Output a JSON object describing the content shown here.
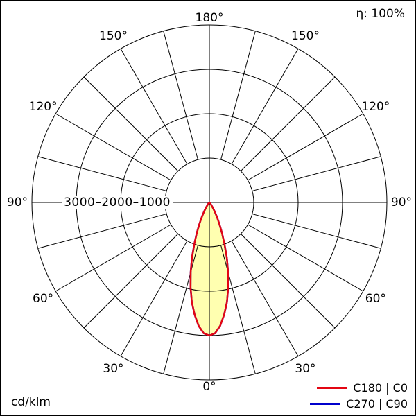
{
  "header": {
    "efficiency_label": "η: 100%"
  },
  "footer": {
    "unit_label": "cd/klm"
  },
  "radial_axis": {
    "scale_label": "3000–2000–1000"
  },
  "legend": {
    "items": [
      {
        "label": "C180 | C0",
        "color": "#e30613"
      },
      {
        "label": "C270 | C90",
        "color": "#0000cc"
      }
    ]
  },
  "angle_labels": [
    {
      "text": "180°",
      "gamma": 180,
      "dir": 0
    },
    {
      "text": "150°",
      "gamma": 150,
      "dir": -1
    },
    {
      "text": "150°",
      "gamma": 150,
      "dir": 1
    },
    {
      "text": "120°",
      "gamma": 120,
      "dir": -1
    },
    {
      "text": "120°",
      "gamma": 120,
      "dir": 1
    },
    {
      "text": "90°",
      "gamma": 90,
      "dir": -1
    },
    {
      "text": "90°",
      "gamma": 90,
      "dir": 1
    },
    {
      "text": "60°",
      "gamma": 60,
      "dir": -1
    },
    {
      "text": "60°",
      "gamma": 60,
      "dir": 1
    },
    {
      "text": "30°",
      "gamma": 30,
      "dir": -1
    },
    {
      "text": "30°",
      "gamma": 30,
      "dir": 1
    },
    {
      "text": "0°",
      "gamma": 0,
      "dir": 0
    }
  ],
  "chart_data": {
    "type": "polar",
    "subtype": "luminous-intensity-distribution",
    "unit": "cd/klm",
    "efficiency_percent": 100,
    "rings": [
      1000,
      2000,
      3000,
      4000
    ],
    "rings_labeled": [
      1000,
      2000,
      3000
    ],
    "spoke_step_deg": 15,
    "angle_label_step_deg": 30,
    "gamma_range_deg": [
      0,
      180
    ],
    "beam_fill_color": "#ffffb0",
    "grid_color": "#000000",
    "symmetric_about_vertical_axis": true,
    "series": [
      {
        "name": "C180 | C0",
        "color": "#e30613",
        "angles_deg": [
          0,
          2.5,
          5,
          7.5,
          10,
          12.5,
          15,
          17.5,
          20,
          22.5,
          25,
          27.5,
          30,
          32.5,
          35,
          37.5,
          40,
          42.5,
          45,
          47.5,
          50
        ],
        "values_cd_per_klm": [
          3000,
          2950,
          2790,
          2550,
          2280,
          1960,
          1630,
          1310,
          990,
          740,
          530,
          370,
          250,
          165,
          100,
          65,
          36,
          22,
          11,
          6,
          3
        ]
      },
      {
        "name": "C270 | C90",
        "color": "#0000cc",
        "angles_deg": [
          0,
          2.5,
          5,
          7.5,
          10,
          12.5,
          15,
          17.5,
          20,
          22.5,
          25,
          27.5,
          30,
          32.5,
          35,
          37.5,
          40,
          42.5,
          45,
          47.5,
          50
        ],
        "values_cd_per_klm": [
          3000,
          2950,
          2790,
          2550,
          2280,
          1960,
          1630,
          1310,
          990,
          740,
          530,
          370,
          250,
          165,
          100,
          65,
          36,
          22,
          11,
          6,
          3
        ]
      }
    ]
  }
}
